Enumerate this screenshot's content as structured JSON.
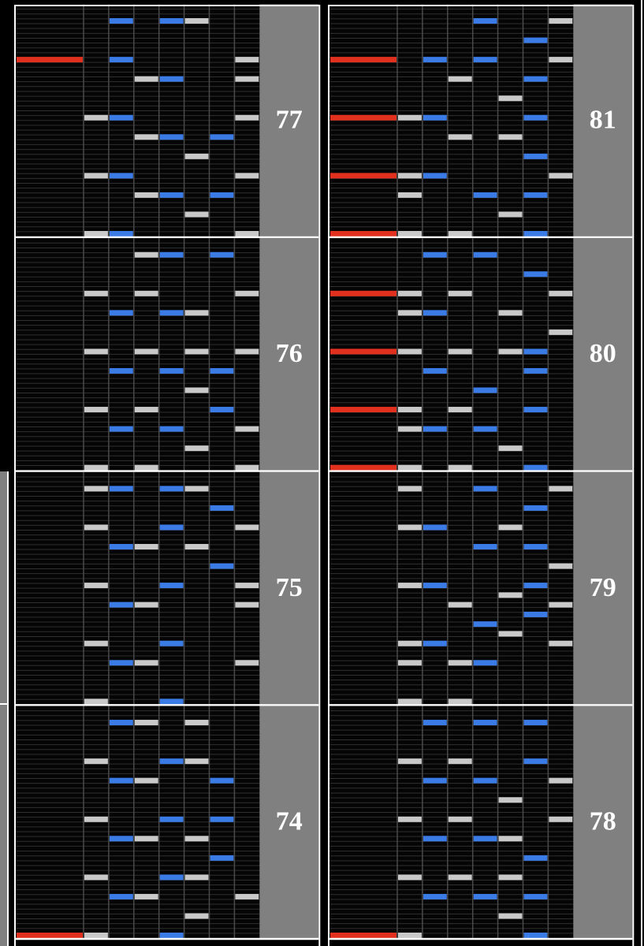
{
  "columns": [
    {
      "measures": [
        77,
        76,
        75,
        74
      ]
    },
    {
      "measures": [
        81,
        80,
        79,
        78
      ]
    }
  ]
}
